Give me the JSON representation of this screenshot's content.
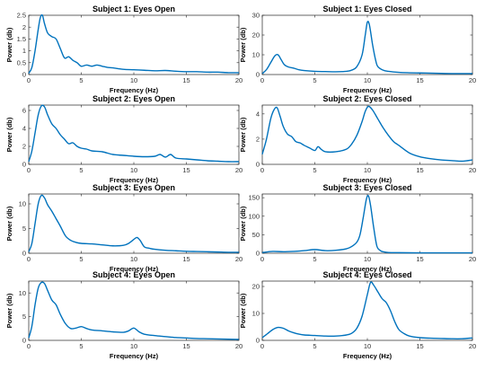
{
  "chart_data": [
    {
      "type": "line",
      "title": "Subject 1: Eyes Open",
      "xlabel": "Frequency (Hz)",
      "ylabel": "Power (db)",
      "xlim": [
        0,
        20
      ],
      "ylim": [
        0,
        2.5
      ],
      "xticks": [
        0,
        5,
        10,
        15,
        20
      ],
      "xtick_labels": [
        "0",
        "5",
        "10",
        "15",
        "20"
      ],
      "yticks": [
        0,
        0.5,
        1,
        1.5,
        2,
        2.5
      ],
      "ytick_labels": [
        "0",
        "0.5",
        "1",
        "1.5",
        "2",
        "2.5"
      ],
      "color": "#0072BD",
      "series": [
        {
          "x": [
            0,
            0.3,
            0.6,
            0.9,
            1.1,
            1.3,
            1.5,
            1.8,
            2.2,
            2.6,
            3,
            3.4,
            3.8,
            4.2,
            4.6,
            5,
            5.5,
            6,
            6.5,
            7,
            7.5,
            8,
            9,
            10,
            11,
            12,
            13,
            14,
            15,
            16,
            17,
            18,
            19,
            20
          ],
          "y": [
            0.05,
            0.3,
            1.0,
            1.9,
            2.4,
            2.5,
            2.15,
            1.75,
            1.6,
            1.5,
            1.1,
            0.7,
            0.75,
            0.6,
            0.5,
            0.35,
            0.4,
            0.35,
            0.4,
            0.35,
            0.3,
            0.28,
            0.22,
            0.2,
            0.18,
            0.16,
            0.17,
            0.14,
            0.12,
            0.12,
            0.1,
            0.1,
            0.08,
            0.08
          ]
        }
      ]
    },
    {
      "type": "line",
      "title": "Subject 1: Eyes Closed",
      "xlabel": "Frequency (Hz)",
      "ylabel": "Power (db)",
      "xlim": [
        0,
        20
      ],
      "ylim": [
        0,
        30
      ],
      "xticks": [
        0,
        5,
        10,
        15,
        20
      ],
      "xtick_labels": [
        "0",
        "5",
        "10",
        "15",
        "20"
      ],
      "yticks": [
        0,
        10,
        20,
        30
      ],
      "ytick_labels": [
        "0",
        "10",
        "20",
        "30"
      ],
      "color": "#0072BD",
      "series": [
        {
          "x": [
            0,
            0.4,
            0.8,
            1.2,
            1.5,
            1.8,
            2.1,
            2.5,
            3,
            3.5,
            4,
            5,
            6,
            7,
            8,
            8.5,
            9,
            9.5,
            9.8,
            10,
            10.2,
            10.5,
            10.8,
            11,
            11.5,
            12,
            13,
            14,
            15,
            16,
            17,
            18,
            19,
            20
          ],
          "y": [
            0.5,
            2.5,
            6,
            9.5,
            10,
            7.5,
            5,
            3.8,
            3.2,
            2.4,
            2,
            1.6,
            1.5,
            1.4,
            1.6,
            2.2,
            4,
            10,
            20,
            26.5,
            25,
            15,
            7,
            4,
            2.2,
            1.6,
            1.1,
            0.9,
            0.8,
            0.7,
            0.6,
            0.5,
            0.5,
            0.5
          ]
        }
      ]
    },
    {
      "type": "line",
      "title": "Subject 2: Eyes Open",
      "xlabel": "Frequency (Hz)",
      "ylabel": "Power (db)",
      "xlim": [
        0,
        20
      ],
      "ylim": [
        0,
        6.6
      ],
      "xticks": [
        0,
        5,
        10,
        15,
        20
      ],
      "xtick_labels": [
        "0",
        "5",
        "10",
        "15",
        "20"
      ],
      "yticks": [
        0,
        2,
        4,
        6
      ],
      "ytick_labels": [
        "0",
        "2",
        "4",
        "6"
      ],
      "color": "#0072BD",
      "series": [
        {
          "x": [
            0,
            0.3,
            0.6,
            0.9,
            1.2,
            1.5,
            1.8,
            2.2,
            2.6,
            3,
            3.4,
            3.8,
            4.2,
            4.6,
            5,
            5.5,
            6,
            7,
            8,
            9,
            10,
            11,
            12,
            12.5,
            13,
            13.5,
            14,
            15,
            16,
            17,
            18,
            19,
            20
          ],
          "y": [
            0.3,
            1.5,
            3.5,
            5.5,
            6.5,
            6.4,
            5.5,
            4.5,
            4,
            3.3,
            2.8,
            2.3,
            2.4,
            2,
            1.8,
            1.7,
            1.5,
            1.4,
            1.1,
            1.0,
            0.9,
            0.85,
            0.9,
            1.1,
            0.8,
            1.1,
            0.7,
            0.6,
            0.5,
            0.4,
            0.35,
            0.3,
            0.3
          ]
        }
      ]
    },
    {
      "type": "line",
      "title": "Subject 2: Eyes Closed",
      "xlabel": "Frequency (Hz)",
      "ylabel": "Power (db)",
      "xlim": [
        0,
        20
      ],
      "ylim": [
        0,
        4.7
      ],
      "xticks": [
        0,
        5,
        10,
        15,
        20
      ],
      "xtick_labels": [
        "0",
        "5",
        "10",
        "15",
        "20"
      ],
      "yticks": [
        0,
        2,
        4
      ],
      "ytick_labels": [
        "0",
        "2",
        "4"
      ],
      "color": "#0072BD",
      "series": [
        {
          "x": [
            0,
            0.4,
            0.8,
            1.1,
            1.4,
            1.7,
            2,
            2.4,
            2.8,
            3.2,
            3.6,
            4,
            4.5,
            5,
            5.3,
            5.6,
            6,
            7,
            8,
            8.5,
            9,
            9.5,
            9.8,
            10.1,
            10.5,
            11,
            11.5,
            12,
            12.5,
            13,
            14,
            15,
            16,
            17,
            18,
            19,
            20
          ],
          "y": [
            0.8,
            2,
            3.6,
            4.3,
            4.5,
            3.8,
            3,
            2.4,
            2.2,
            1.8,
            1.7,
            1.5,
            1.3,
            1.1,
            1.4,
            1.2,
            1.0,
            1.0,
            1.2,
            1.6,
            2.3,
            3.4,
            4.2,
            4.6,
            4.3,
            3.6,
            2.9,
            2.3,
            1.8,
            1.5,
            0.9,
            0.6,
            0.45,
            0.35,
            0.3,
            0.25,
            0.35
          ]
        }
      ]
    },
    {
      "type": "line",
      "title": "Subject 3: Eyes Open",
      "xlabel": "Frequency (Hz)",
      "ylabel": "Power (db)",
      "xlim": [
        0,
        20
      ],
      "ylim": [
        0,
        12
      ],
      "xticks": [
        0,
        5,
        10,
        15,
        20
      ],
      "xtick_labels": [
        "0",
        "5",
        "10",
        "15",
        "20"
      ],
      "yticks": [
        0,
        5,
        10
      ],
      "ytick_labels": [
        "0",
        "5",
        "10"
      ],
      "color": "#0072BD",
      "series": [
        {
          "x": [
            0,
            0.3,
            0.6,
            0.9,
            1.2,
            1.5,
            1.8,
            2.2,
            2.6,
            3,
            3.5,
            4,
            4.5,
            5,
            6,
            7,
            8,
            9,
            9.5,
            10,
            10.3,
            10.6,
            11,
            11.5,
            12,
            13,
            14,
            15,
            16,
            17,
            18,
            19,
            20
          ],
          "y": [
            0.3,
            2,
            6,
            10,
            11.7,
            11.2,
            9.8,
            8.5,
            7,
            5.5,
            3.5,
            2.6,
            2.2,
            2.0,
            1.9,
            1.7,
            1.5,
            1.6,
            2.0,
            2.8,
            3.2,
            2.6,
            1.3,
            1.0,
            0.8,
            0.6,
            0.5,
            0.4,
            0.35,
            0.3,
            0.25,
            0.2,
            0.2
          ]
        }
      ]
    },
    {
      "type": "line",
      "title": "Subject 3: Eyes Closed",
      "xlabel": "Frequency (Hz)",
      "ylabel": "Power (db)",
      "xlim": [
        0,
        20
      ],
      "ylim": [
        0,
        160
      ],
      "xticks": [
        0,
        5,
        10,
        15,
        20
      ],
      "xtick_labels": [
        "0",
        "5",
        "10",
        "15",
        "20"
      ],
      "yticks": [
        0,
        50,
        100,
        150
      ],
      "ytick_labels": [
        "0",
        "50",
        "100",
        "150"
      ],
      "color": "#0072BD",
      "series": [
        {
          "x": [
            0,
            1,
            2,
            3,
            4,
            5,
            6,
            7,
            8,
            8.5,
            9,
            9.3,
            9.6,
            9.9,
            10.1,
            10.3,
            10.6,
            10.9,
            11.2,
            11.5,
            12,
            13,
            14,
            15,
            16,
            17,
            18,
            19,
            20
          ],
          "y": [
            2,
            5,
            4,
            5,
            7,
            10,
            7,
            8,
            12,
            18,
            30,
            50,
            95,
            145,
            155,
            130,
            70,
            20,
            8,
            4,
            2,
            1.5,
            1.2,
            1,
            1,
            1,
            1,
            1,
            1
          ]
        }
      ]
    },
    {
      "type": "line",
      "title": "Subject 4: Eyes Open",
      "xlabel": "Frequency (Hz)",
      "ylabel": "Power (db)",
      "xlim": [
        0,
        20
      ],
      "ylim": [
        0,
        12.5
      ],
      "xticks": [
        0,
        5,
        10,
        15,
        20
      ],
      "xtick_labels": [
        "0",
        "5",
        "10",
        "15",
        "20"
      ],
      "yticks": [
        0,
        5,
        10
      ],
      "ytick_labels": [
        "0",
        "5",
        "10"
      ],
      "color": "#0072BD",
      "series": [
        {
          "x": [
            0,
            0.3,
            0.6,
            0.9,
            1.2,
            1.5,
            1.8,
            2.2,
            2.6,
            3,
            3.5,
            4,
            4.5,
            5,
            5.5,
            6,
            7,
            8,
            9,
            9.5,
            10,
            10.5,
            11,
            12,
            13,
            14,
            15,
            16,
            17,
            18,
            19,
            20
          ],
          "y": [
            0.5,
            3,
            7.5,
            11,
            12.2,
            12,
            10.5,
            8.5,
            7.5,
            5.5,
            3.5,
            2.5,
            2.6,
            2.9,
            2.5,
            2.2,
            2.0,
            1.8,
            1.7,
            2.0,
            2.6,
            1.8,
            1.3,
            1.0,
            0.8,
            0.6,
            0.5,
            0.4,
            0.35,
            0.3,
            0.25,
            0.2
          ]
        }
      ]
    },
    {
      "type": "line",
      "title": "Subject 4: Eyes Closed",
      "xlabel": "Frequency (Hz)",
      "ylabel": "Power (db)",
      "xlim": [
        0,
        20
      ],
      "ylim": [
        0,
        22
      ],
      "xticks": [
        0,
        5,
        10,
        15,
        20
      ],
      "xtick_labels": [
        "0",
        "5",
        "10",
        "15",
        "20"
      ],
      "yticks": [
        0,
        10,
        20
      ],
      "ytick_labels": [
        "0",
        "10",
        "20"
      ],
      "color": "#0072BD",
      "series": [
        {
          "x": [
            0,
            0.5,
            1,
            1.5,
            2,
            2.5,
            3,
            3.5,
            4,
            5,
            6,
            7,
            8,
            8.5,
            9,
            9.5,
            10,
            10.3,
            10.6,
            11,
            11.4,
            11.8,
            12.2,
            12.6,
            13,
            13.5,
            14,
            15,
            16,
            17,
            18,
            19,
            20
          ],
          "y": [
            1,
            2.5,
            4,
            4.8,
            4.5,
            3.5,
            2.8,
            2.3,
            2.0,
            1.8,
            1.6,
            1.6,
            2.0,
            2.6,
            4.5,
            9,
            17,
            21.5,
            20.5,
            18,
            15.5,
            14,
            11,
            7,
            4,
            2.5,
            1.6,
            1.0,
            0.8,
            0.7,
            0.6,
            0.6,
            0.9
          ]
        }
      ]
    }
  ]
}
